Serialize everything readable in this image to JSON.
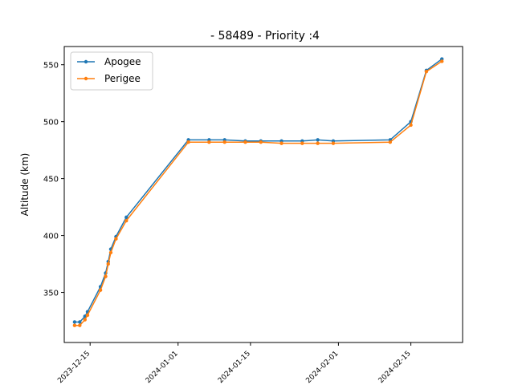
{
  "chart_data": {
    "type": "line",
    "title": "- 58489 - Priority :4",
    "xlabel": "",
    "ylabel": "Altitude (km)",
    "grid": false,
    "legend_position": "top-left",
    "x_ticks": [
      "2023-12-15",
      "2024-01-01",
      "2024-01-15",
      "2024-02-01",
      "2024-02-15"
    ],
    "y_ticks": [
      350,
      400,
      450,
      500,
      550
    ],
    "xlim": [
      "2023-12-10",
      "2024-02-25"
    ],
    "ylim": [
      306,
      566
    ],
    "x": [
      "2023-12-12",
      "2023-12-13",
      "2023-12-14",
      "2023-12-14T12:00",
      "2023-12-17",
      "2023-12-18",
      "2023-12-18T12:00",
      "2023-12-19",
      "2023-12-20",
      "2023-12-22",
      "2024-01-03",
      "2024-01-07",
      "2024-01-10",
      "2024-01-14",
      "2024-01-17",
      "2024-01-21",
      "2024-01-25",
      "2024-01-28",
      "2024-01-31",
      "2024-02-11",
      "2024-02-15",
      "2024-02-18",
      "2024-02-21"
    ],
    "series": [
      {
        "name": "Apogee",
        "color": "#1f77b4",
        "values": [
          324,
          324,
          329,
          333,
          355,
          367,
          377,
          388,
          399,
          416,
          484,
          484,
          484,
          483,
          483,
          483,
          483,
          484,
          483,
          484,
          500,
          545,
          555
        ]
      },
      {
        "name": "Perigee",
        "color": "#ff7f0e",
        "values": [
          321,
          321,
          326,
          330,
          352,
          364,
          375,
          385,
          397,
          413,
          482,
          482,
          482,
          482,
          482,
          481,
          481,
          481,
          481,
          482,
          497,
          544,
          553
        ]
      }
    ]
  }
}
